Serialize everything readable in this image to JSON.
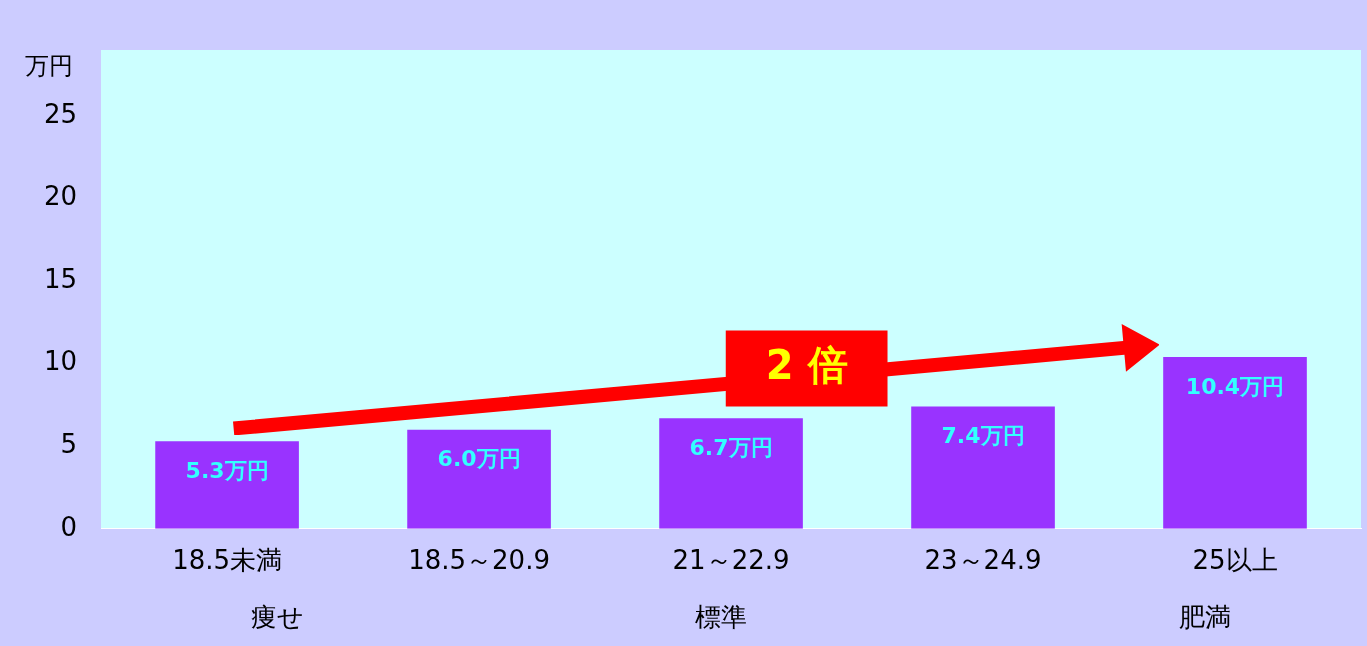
{
  "chart_data": {
    "type": "bar",
    "ylabel": "万円",
    "categories": [
      "18.5未満",
      "18.5～20.9",
      "21～22.9",
      "23～24.9",
      "25以上"
    ],
    "values": [
      5.3,
      6.0,
      6.7,
      7.4,
      10.4
    ],
    "color": "#9933ff",
    "value_labels": [
      "5.3万円",
      "6.0万円",
      "6.7万円",
      "7.4万円",
      "10.4万円"
    ],
    "ylim": [
      0,
      29
    ],
    "yticks": [
      0,
      5,
      10,
      15,
      20,
      25
    ],
    "grid": false,
    "legend": false,
    "annotations": [
      "痩せ",
      "標準",
      "肥満",
      "2 倍"
    ]
  }
}
